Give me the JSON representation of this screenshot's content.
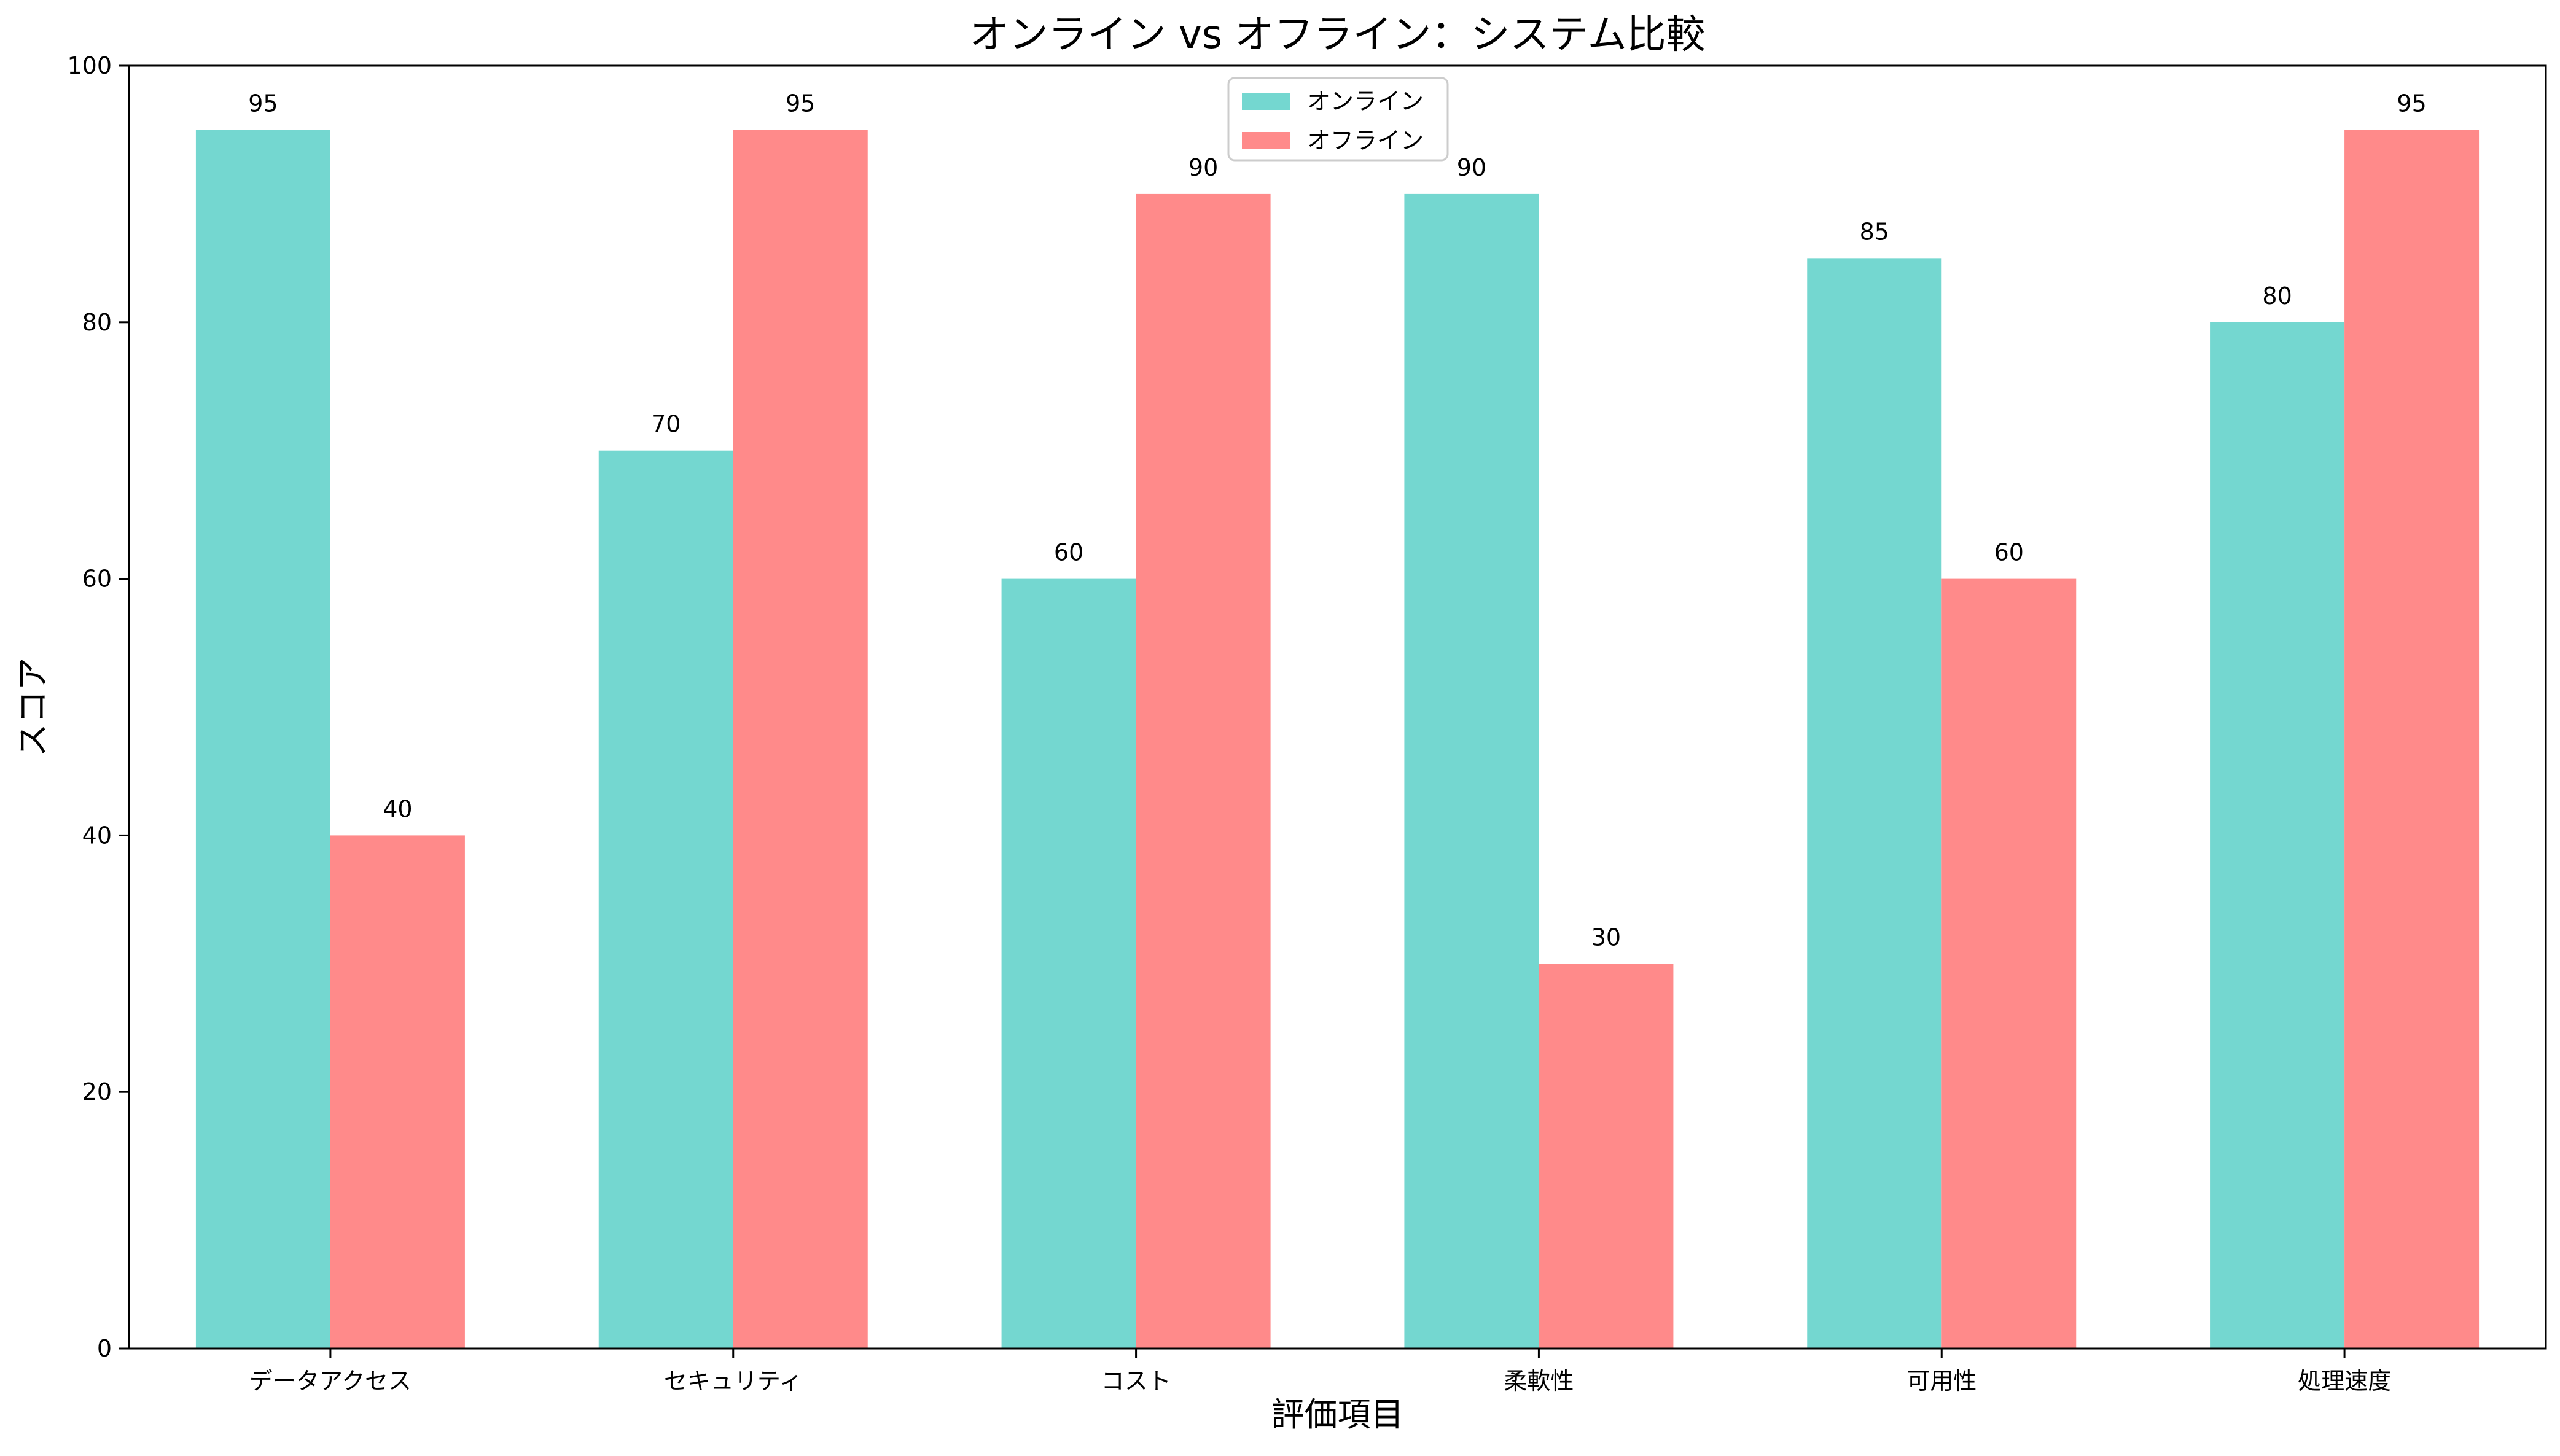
{
  "chart_data": {
    "type": "bar",
    "title": "オンライン vs オフライン：システム比較",
    "xlabel": "評価項目",
    "ylabel": "スコア",
    "categories": [
      "データアクセス",
      "セキュリティ",
      "コスト",
      "柔軟性",
      "可用性",
      "処理速度"
    ],
    "series": [
      {
        "name": "オンライン",
        "color": "#74d7d0",
        "values": [
          95,
          70,
          60,
          90,
          85,
          80
        ]
      },
      {
        "name": "オフライン",
        "color": "#ff8a8a",
        "values": [
          40,
          95,
          90,
          30,
          60,
          95
        ]
      }
    ],
    "ylim": [
      0,
      100
    ],
    "yticks": [
      0,
      20,
      40,
      60,
      80,
      100
    ],
    "grid": false,
    "legend_position": "top-center",
    "data_labels": true
  }
}
